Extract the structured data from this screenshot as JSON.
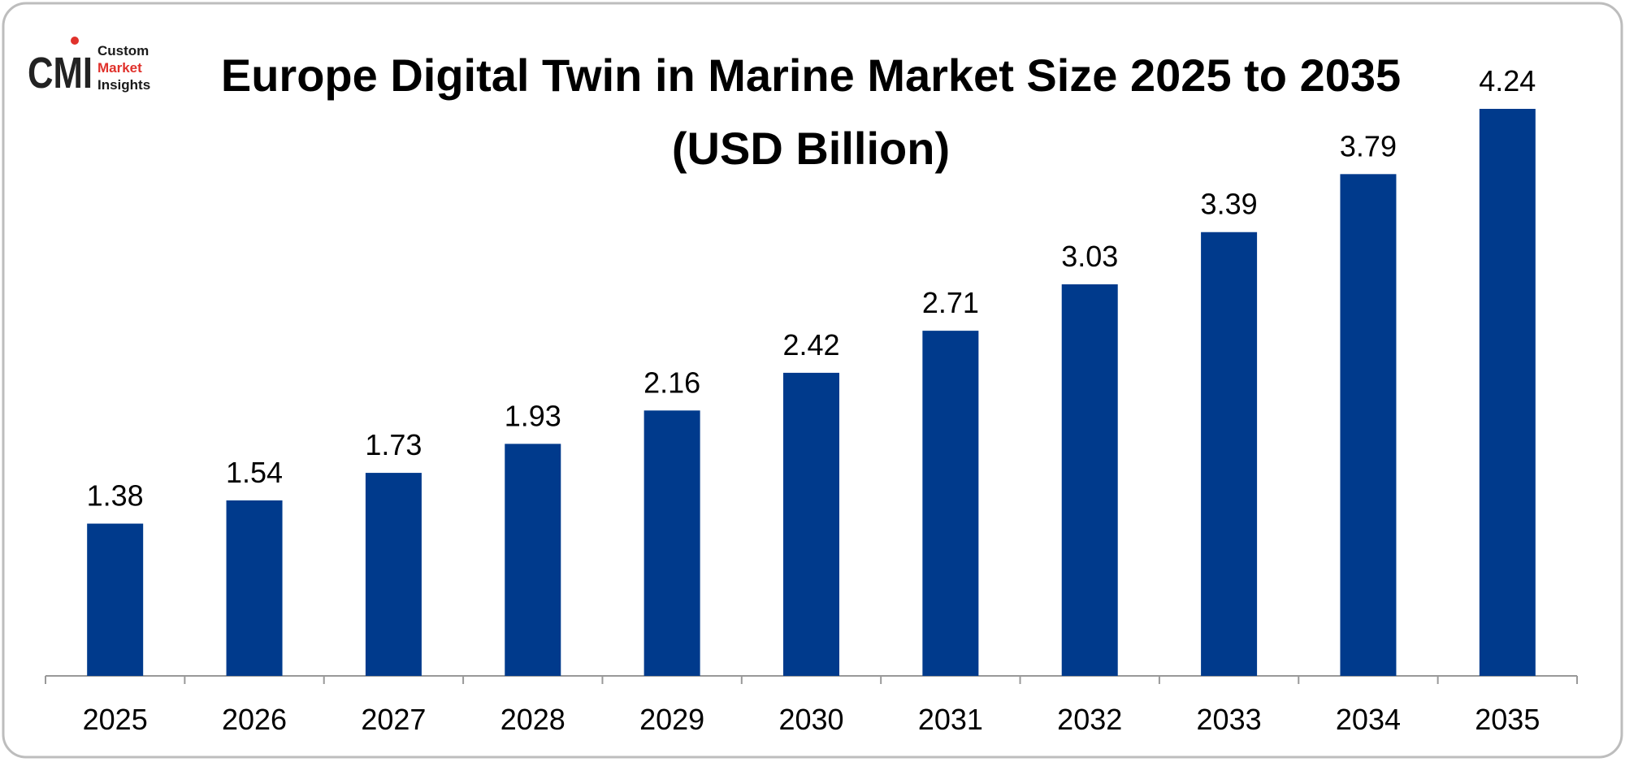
{
  "logo": {
    "initials": "CMI",
    "lines": [
      "Custom",
      "Market",
      "Insights"
    ]
  },
  "chart_data": {
    "type": "bar",
    "title": "Europe Digital Twin in Marine Market Size 2025 to 2035 (USD Billion)",
    "categories": [
      "2025",
      "2026",
      "2027",
      "2028",
      "2029",
      "2030",
      "2031",
      "2032",
      "2033",
      "2034",
      "2035"
    ],
    "values": [
      1.38,
      1.54,
      1.73,
      1.93,
      2.16,
      2.42,
      2.71,
      3.03,
      3.39,
      3.79,
      4.24
    ],
    "color": "#003a8c",
    "ylim": [
      0.33,
      4.24
    ]
  }
}
